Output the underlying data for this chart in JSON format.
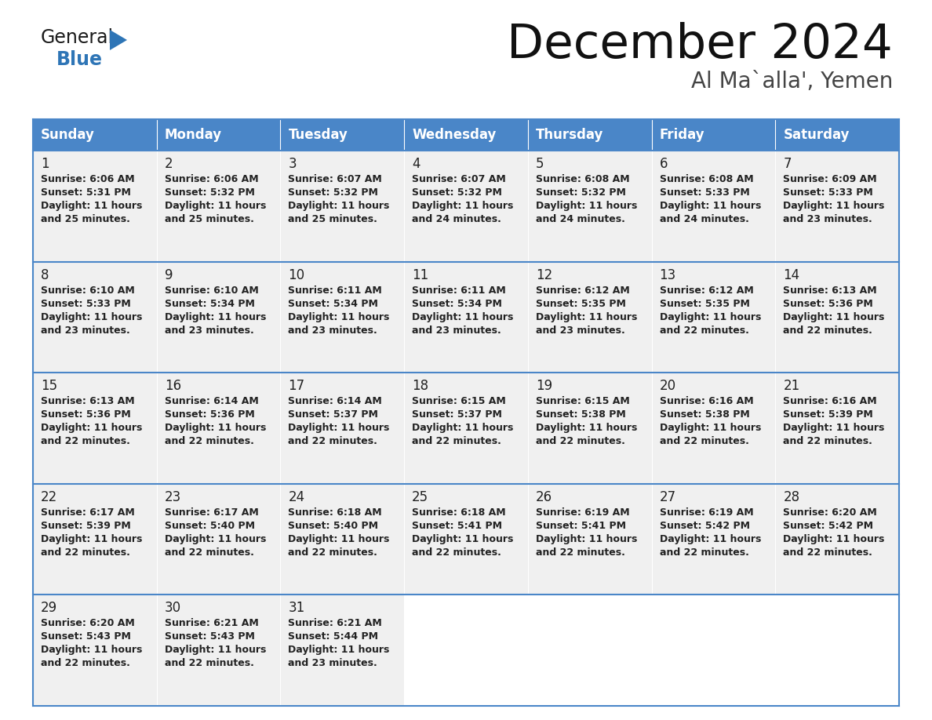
{
  "title": "December 2024",
  "subtitle": "Al Ma`alla', Yemen",
  "header_color": "#4a86c8",
  "header_text_color": "#FFFFFF",
  "days_of_week": [
    "Sunday",
    "Monday",
    "Tuesday",
    "Wednesday",
    "Thursday",
    "Friday",
    "Saturday"
  ],
  "weeks": [
    [
      {
        "day": "1",
        "sunrise": "6:06 AM",
        "sunset": "5:31 PM",
        "dl1": "Daylight: 11 hours",
        "dl2": "and 25 minutes."
      },
      {
        "day": "2",
        "sunrise": "6:06 AM",
        "sunset": "5:32 PM",
        "dl1": "Daylight: 11 hours",
        "dl2": "and 25 minutes."
      },
      {
        "day": "3",
        "sunrise": "6:07 AM",
        "sunset": "5:32 PM",
        "dl1": "Daylight: 11 hours",
        "dl2": "and 25 minutes."
      },
      {
        "day": "4",
        "sunrise": "6:07 AM",
        "sunset": "5:32 PM",
        "dl1": "Daylight: 11 hours",
        "dl2": "and 24 minutes."
      },
      {
        "day": "5",
        "sunrise": "6:08 AM",
        "sunset": "5:32 PM",
        "dl1": "Daylight: 11 hours",
        "dl2": "and 24 minutes."
      },
      {
        "day": "6",
        "sunrise": "6:08 AM",
        "sunset": "5:33 PM",
        "dl1": "Daylight: 11 hours",
        "dl2": "and 24 minutes."
      },
      {
        "day": "7",
        "sunrise": "6:09 AM",
        "sunset": "5:33 PM",
        "dl1": "Daylight: 11 hours",
        "dl2": "and 23 minutes."
      }
    ],
    [
      {
        "day": "8",
        "sunrise": "6:10 AM",
        "sunset": "5:33 PM",
        "dl1": "Daylight: 11 hours",
        "dl2": "and 23 minutes."
      },
      {
        "day": "9",
        "sunrise": "6:10 AM",
        "sunset": "5:34 PM",
        "dl1": "Daylight: 11 hours",
        "dl2": "and 23 minutes."
      },
      {
        "day": "10",
        "sunrise": "6:11 AM",
        "sunset": "5:34 PM",
        "dl1": "Daylight: 11 hours",
        "dl2": "and 23 minutes."
      },
      {
        "day": "11",
        "sunrise": "6:11 AM",
        "sunset": "5:34 PM",
        "dl1": "Daylight: 11 hours",
        "dl2": "and 23 minutes."
      },
      {
        "day": "12",
        "sunrise": "6:12 AM",
        "sunset": "5:35 PM",
        "dl1": "Daylight: 11 hours",
        "dl2": "and 23 minutes."
      },
      {
        "day": "13",
        "sunrise": "6:12 AM",
        "sunset": "5:35 PM",
        "dl1": "Daylight: 11 hours",
        "dl2": "and 22 minutes."
      },
      {
        "day": "14",
        "sunrise": "6:13 AM",
        "sunset": "5:36 PM",
        "dl1": "Daylight: 11 hours",
        "dl2": "and 22 minutes."
      }
    ],
    [
      {
        "day": "15",
        "sunrise": "6:13 AM",
        "sunset": "5:36 PM",
        "dl1": "Daylight: 11 hours",
        "dl2": "and 22 minutes."
      },
      {
        "day": "16",
        "sunrise": "6:14 AM",
        "sunset": "5:36 PM",
        "dl1": "Daylight: 11 hours",
        "dl2": "and 22 minutes."
      },
      {
        "day": "17",
        "sunrise": "6:14 AM",
        "sunset": "5:37 PM",
        "dl1": "Daylight: 11 hours",
        "dl2": "and 22 minutes."
      },
      {
        "day": "18",
        "sunrise": "6:15 AM",
        "sunset": "5:37 PM",
        "dl1": "Daylight: 11 hours",
        "dl2": "and 22 minutes."
      },
      {
        "day": "19",
        "sunrise": "6:15 AM",
        "sunset": "5:38 PM",
        "dl1": "Daylight: 11 hours",
        "dl2": "and 22 minutes."
      },
      {
        "day": "20",
        "sunrise": "6:16 AM",
        "sunset": "5:38 PM",
        "dl1": "Daylight: 11 hours",
        "dl2": "and 22 minutes."
      },
      {
        "day": "21",
        "sunrise": "6:16 AM",
        "sunset": "5:39 PM",
        "dl1": "Daylight: 11 hours",
        "dl2": "and 22 minutes."
      }
    ],
    [
      {
        "day": "22",
        "sunrise": "6:17 AM",
        "sunset": "5:39 PM",
        "dl1": "Daylight: 11 hours",
        "dl2": "and 22 minutes."
      },
      {
        "day": "23",
        "sunrise": "6:17 AM",
        "sunset": "5:40 PM",
        "dl1": "Daylight: 11 hours",
        "dl2": "and 22 minutes."
      },
      {
        "day": "24",
        "sunrise": "6:18 AM",
        "sunset": "5:40 PM",
        "dl1": "Daylight: 11 hours",
        "dl2": "and 22 minutes."
      },
      {
        "day": "25",
        "sunrise": "6:18 AM",
        "sunset": "5:41 PM",
        "dl1": "Daylight: 11 hours",
        "dl2": "and 22 minutes."
      },
      {
        "day": "26",
        "sunrise": "6:19 AM",
        "sunset": "5:41 PM",
        "dl1": "Daylight: 11 hours",
        "dl2": "and 22 minutes."
      },
      {
        "day": "27",
        "sunrise": "6:19 AM",
        "sunset": "5:42 PM",
        "dl1": "Daylight: 11 hours",
        "dl2": "and 22 minutes."
      },
      {
        "day": "28",
        "sunrise": "6:20 AM",
        "sunset": "5:42 PM",
        "dl1": "Daylight: 11 hours",
        "dl2": "and 22 minutes."
      }
    ],
    [
      {
        "day": "29",
        "sunrise": "6:20 AM",
        "sunset": "5:43 PM",
        "dl1": "Daylight: 11 hours",
        "dl2": "and 22 minutes."
      },
      {
        "day": "30",
        "sunrise": "6:21 AM",
        "sunset": "5:43 PM",
        "dl1": "Daylight: 11 hours",
        "dl2": "and 22 minutes."
      },
      {
        "day": "31",
        "sunrise": "6:21 AM",
        "sunset": "5:44 PM",
        "dl1": "Daylight: 11 hours",
        "dl2": "and 23 minutes."
      },
      null,
      null,
      null,
      null
    ]
  ],
  "background_color": "#FFFFFF",
  "cell_bg_color": "#F0F0F0",
  "empty_cell_bg": "#FFFFFF",
  "text_color": "#222222",
  "border_color": "#4a86c8",
  "separator_color": "#4a86c8",
  "logo_general_color": "#1a1a1a",
  "logo_blue_color": "#2E75B6",
  "title_color": "#111111",
  "subtitle_color": "#444444"
}
